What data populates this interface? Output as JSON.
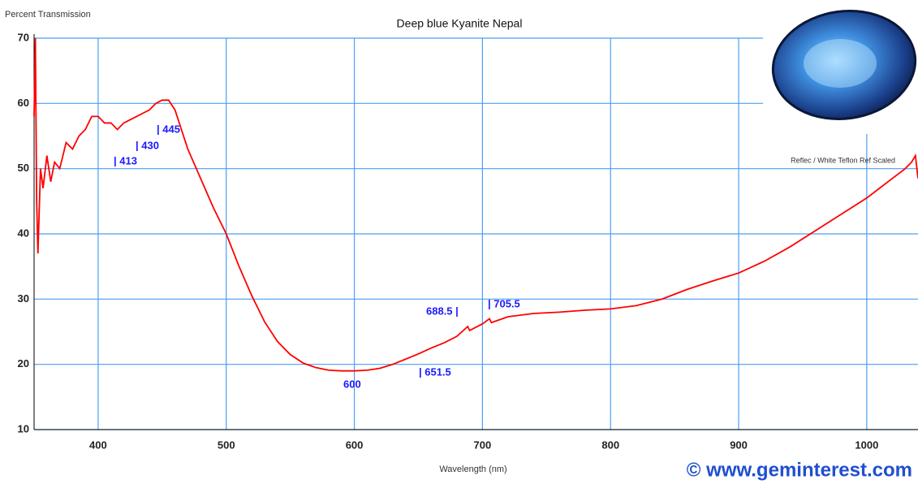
{
  "chart_data": {
    "type": "line",
    "title": "Deep blue Kyanite Nepal",
    "ylabel": "Percent Transmission",
    "xlabel": "Wavelength (nm)",
    "note": "Reflec / White Teflon Ref Scaled",
    "watermark": "© www.geminterest.com",
    "annotations": [
      "| 413",
      "| 430",
      "| 445",
      "600",
      "| 651.5",
      "688.5 |",
      "| 705.5"
    ],
    "x": [
      350,
      351,
      352,
      353,
      355,
      357,
      360,
      363,
      366,
      370,
      375,
      380,
      385,
      390,
      395,
      400,
      405,
      410,
      415,
      420,
      425,
      430,
      435,
      440,
      445,
      450,
      455,
      460,
      465,
      470,
      480,
      490,
      500,
      510,
      520,
      530,
      540,
      550,
      560,
      570,
      580,
      590,
      600,
      610,
      620,
      630,
      640,
      650,
      660,
      670,
      680,
      688.5,
      690,
      700,
      705.5,
      707,
      720,
      740,
      760,
      780,
      800,
      820,
      840,
      860,
      880,
      900,
      920,
      940,
      960,
      980,
      1000,
      1010,
      1020,
      1030,
      1035,
      1038,
      1040
    ],
    "series": [
      {
        "color": "#ff0000",
        "values": [
          58,
          70,
          45,
          37,
          50,
          47,
          52,
          48,
          51,
          50,
          54,
          53,
          55,
          56,
          58,
          58,
          57,
          57,
          56,
          57,
          57.5,
          58,
          58.5,
          59,
          60,
          60.5,
          60.5,
          59,
          56,
          53,
          48.5,
          44,
          40,
          35,
          30.5,
          26.5,
          23.5,
          21.5,
          20.2,
          19.5,
          19.1,
          19.0,
          19.0,
          19.1,
          19.4,
          20,
          20.8,
          21.6,
          22.5,
          23.3,
          24.3,
          25.8,
          25.2,
          26.2,
          27,
          26.4,
          27.3,
          27.8,
          28.0,
          28.3,
          28.5,
          29,
          30,
          31.5,
          32.8,
          34,
          35.8,
          38,
          40.5,
          43,
          45.5,
          47,
          48.5,
          50,
          51,
          52,
          48.5
        ]
      }
    ],
    "xlim": [
      350,
      1040
    ],
    "ylim": [
      10,
      70
    ],
    "xticks": [
      400,
      500,
      600,
      700,
      800,
      900,
      1000
    ],
    "yticks": [
      10,
      20,
      30,
      40,
      50,
      60,
      70
    ],
    "grid": true,
    "grid_color": "#4a9ff5",
    "annotation_color": "#1a1aff"
  }
}
